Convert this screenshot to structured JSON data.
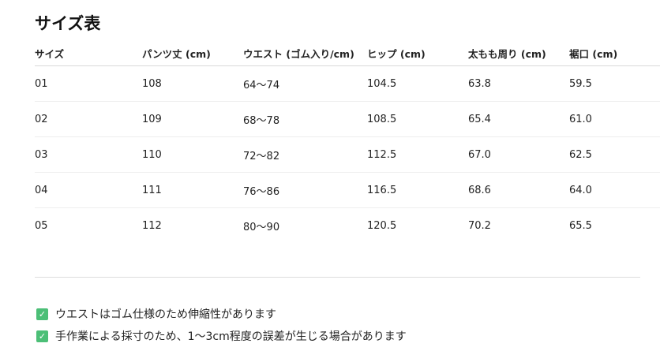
{
  "title": "サイズ表",
  "table": {
    "headers": [
      "サイズ",
      "パンツ丈 (cm)",
      "ウエスト (ゴム入り/cm)",
      "ヒップ (cm)",
      "太もも周り (cm)",
      "裾口 (cm)"
    ],
    "rows": [
      [
        "01",
        "108",
        "64〜74",
        "104.5",
        "63.8",
        "59.5"
      ],
      [
        "02",
        "109",
        "68〜78",
        "108.5",
        "65.4",
        "61.0"
      ],
      [
        "03",
        "110",
        "72〜82",
        "112.5",
        "67.0",
        "62.5"
      ],
      [
        "04",
        "111",
        "76〜86",
        "116.5",
        "68.6",
        "64.0"
      ],
      [
        "05",
        "112",
        "80〜90",
        "120.5",
        "70.2",
        "65.5"
      ]
    ]
  },
  "notes": [
    {
      "icon": "check-box-icon",
      "text": "ウエストはゴム仕様のため伸縮性があります"
    },
    {
      "icon": "check-box-icon",
      "text": "手作業による採寸のため、1〜3cm程度の誤差が生じる場合があります"
    }
  ],
  "colors": {
    "check": "#4cbf77"
  }
}
